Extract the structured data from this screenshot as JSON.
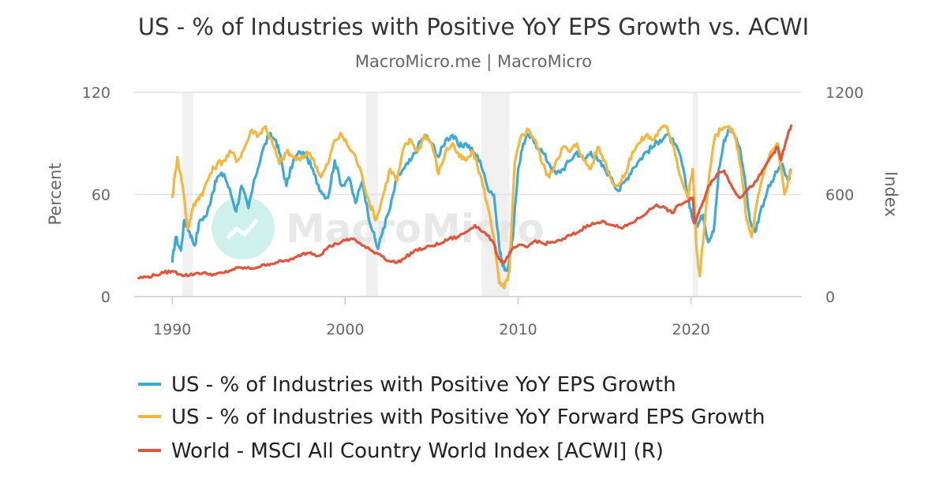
{
  "chart_data": {
    "type": "line",
    "title": "US - % of Industries with Positive YoY EPS Growth vs. ACWI",
    "subtitle": "MacroMicro.me | MacroMicro",
    "watermark": "MacroMicro",
    "xlabel": "",
    "ylabel_left": "Percent",
    "ylabel_right": "Index",
    "xlim": [
      1987.8,
      2026.4
    ],
    "ylim_left": [
      0,
      120
    ],
    "ylim_right": [
      0,
      1200
    ],
    "x_ticks": [
      1990,
      2000,
      2010,
      2020
    ],
    "y_ticks_left": [
      0,
      60,
      120
    ],
    "y_ticks_right": [
      0,
      600,
      1200
    ],
    "recessions": [
      [
        1990.6,
        1991.2
      ],
      [
        2001.2,
        2001.9
      ],
      [
        2007.9,
        2009.5
      ],
      [
        2020.1,
        2020.4
      ]
    ],
    "legend_position": "bottom",
    "series": [
      {
        "name": "US - % of Industries with Positive YoY EPS Growth",
        "axis": "left",
        "color": "#3ea8d6",
        "points": [
          [
            1990.0,
            20
          ],
          [
            1990.2,
            35
          ],
          [
            1990.5,
            27
          ],
          [
            1990.7,
            45
          ],
          [
            1991.0,
            38
          ],
          [
            1991.3,
            30
          ],
          [
            1991.6,
            45
          ],
          [
            1992.0,
            48
          ],
          [
            1992.3,
            60
          ],
          [
            1992.6,
            70
          ],
          [
            1993.0,
            72
          ],
          [
            1993.4,
            60
          ],
          [
            1993.7,
            50
          ],
          [
            1994.0,
            65
          ],
          [
            1994.4,
            52
          ],
          [
            1994.8,
            70
          ],
          [
            1995.2,
            85
          ],
          [
            1995.6,
            95
          ],
          [
            1996.0,
            92
          ],
          [
            1996.3,
            80
          ],
          [
            1996.6,
            65
          ],
          [
            1997.0,
            80
          ],
          [
            1997.4,
            85
          ],
          [
            1997.8,
            82
          ],
          [
            1998.2,
            72
          ],
          [
            1998.6,
            62
          ],
          [
            1999.0,
            58
          ],
          [
            1999.4,
            80
          ],
          [
            1999.8,
            65
          ],
          [
            2000.2,
            70
          ],
          [
            2000.6,
            55
          ],
          [
            2001.0,
            68
          ],
          [
            2001.3,
            50
          ],
          [
            2001.6,
            38
          ],
          [
            2001.9,
            28
          ],
          [
            2002.2,
            40
          ],
          [
            2002.6,
            52
          ],
          [
            2003.0,
            70
          ],
          [
            2003.4,
            75
          ],
          [
            2003.8,
            80
          ],
          [
            2004.2,
            88
          ],
          [
            2004.6,
            95
          ],
          [
            2005.0,
            90
          ],
          [
            2005.4,
            82
          ],
          [
            2005.8,
            92
          ],
          [
            2006.2,
            95
          ],
          [
            2006.6,
            88
          ],
          [
            2007.0,
            90
          ],
          [
            2007.4,
            85
          ],
          [
            2007.8,
            80
          ],
          [
            2008.2,
            65
          ],
          [
            2008.6,
            60
          ],
          [
            2008.9,
            30
          ],
          [
            2009.1,
            18
          ],
          [
            2009.4,
            16
          ],
          [
            2009.7,
            35
          ],
          [
            2010.0,
            75
          ],
          [
            2010.3,
            90
          ],
          [
            2010.6,
            95
          ],
          [
            2011.0,
            90
          ],
          [
            2011.4,
            85
          ],
          [
            2011.8,
            78
          ],
          [
            2012.2,
            72
          ],
          [
            2012.6,
            75
          ],
          [
            2013.0,
            80
          ],
          [
            2013.4,
            85
          ],
          [
            2013.8,
            80
          ],
          [
            2014.2,
            85
          ],
          [
            2014.6,
            80
          ],
          [
            2015.0,
            75
          ],
          [
            2015.4,
            70
          ],
          [
            2015.8,
            62
          ],
          [
            2016.2,
            68
          ],
          [
            2016.6,
            75
          ],
          [
            2017.0,
            80
          ],
          [
            2017.4,
            85
          ],
          [
            2017.8,
            88
          ],
          [
            2018.2,
            92
          ],
          [
            2018.6,
            95
          ],
          [
            2019.0,
            90
          ],
          [
            2019.4,
            82
          ],
          [
            2019.8,
            60
          ],
          [
            2020.1,
            45
          ],
          [
            2020.4,
            42
          ],
          [
            2020.7,
            48
          ],
          [
            2021.0,
            32
          ],
          [
            2021.3,
            38
          ],
          [
            2021.6,
            75
          ],
          [
            2021.9,
            92
          ],
          [
            2022.2,
            98
          ],
          [
            2022.5,
            95
          ],
          [
            2022.8,
            88
          ],
          [
            2023.1,
            70
          ],
          [
            2023.4,
            45
          ],
          [
            2023.7,
            38
          ],
          [
            2024.0,
            50
          ],
          [
            2024.4,
            62
          ],
          [
            2024.8,
            70
          ],
          [
            2025.2,
            78
          ],
          [
            2025.6,
            68
          ],
          [
            2025.8,
            75
          ]
        ]
      },
      {
        "name": "US - % of Industries with Positive YoY Forward EPS Growth",
        "axis": "left",
        "color": "#f3b73f",
        "points": [
          [
            1990.0,
            58
          ],
          [
            1990.3,
            82
          ],
          [
            1990.6,
            65
          ],
          [
            1990.9,
            40
          ],
          [
            1991.2,
            52
          ],
          [
            1991.5,
            58
          ],
          [
            1991.8,
            62
          ],
          [
            1992.2,
            72
          ],
          [
            1992.6,
            78
          ],
          [
            1993.0,
            80
          ],
          [
            1993.4,
            85
          ],
          [
            1993.8,
            80
          ],
          [
            1994.2,
            88
          ],
          [
            1994.6,
            98
          ],
          [
            1995.0,
            95
          ],
          [
            1995.4,
            100
          ],
          [
            1995.8,
            90
          ],
          [
            1996.2,
            78
          ],
          [
            1996.6,
            85
          ],
          [
            1997.0,
            82
          ],
          [
            1997.4,
            80
          ],
          [
            1997.8,
            85
          ],
          [
            1998.2,
            80
          ],
          [
            1998.6,
            70
          ],
          [
            1999.0,
            78
          ],
          [
            1999.4,
            92
          ],
          [
            1999.8,
            95
          ],
          [
            2000.2,
            88
          ],
          [
            2000.6,
            82
          ],
          [
            2001.0,
            70
          ],
          [
            2001.4,
            55
          ],
          [
            2001.8,
            45
          ],
          [
            2002.2,
            60
          ],
          [
            2002.6,
            75
          ],
          [
            2003.0,
            68
          ],
          [
            2003.4,
            88
          ],
          [
            2003.8,
            92
          ],
          [
            2004.2,
            85
          ],
          [
            2004.6,
            95
          ],
          [
            2005.0,
            90
          ],
          [
            2005.4,
            72
          ],
          [
            2005.8,
            85
          ],
          [
            2006.2,
            90
          ],
          [
            2006.6,
            82
          ],
          [
            2007.0,
            80
          ],
          [
            2007.4,
            85
          ],
          [
            2007.8,
            72
          ],
          [
            2008.2,
            55
          ],
          [
            2008.6,
            35
          ],
          [
            2008.9,
            8
          ],
          [
            2009.2,
            5
          ],
          [
            2009.5,
            15
          ],
          [
            2009.8,
            78
          ],
          [
            2010.2,
            95
          ],
          [
            2010.6,
            98
          ],
          [
            2011.0,
            92
          ],
          [
            2011.4,
            78
          ],
          [
            2011.8,
            70
          ],
          [
            2012.2,
            80
          ],
          [
            2012.6,
            88
          ],
          [
            2013.0,
            85
          ],
          [
            2013.4,
            90
          ],
          [
            2013.8,
            80
          ],
          [
            2014.2,
            75
          ],
          [
            2014.6,
            88
          ],
          [
            2015.0,
            80
          ],
          [
            2015.4,
            68
          ],
          [
            2015.8,
            65
          ],
          [
            2016.2,
            72
          ],
          [
            2016.6,
            85
          ],
          [
            2017.0,
            90
          ],
          [
            2017.4,
            95
          ],
          [
            2017.8,
            92
          ],
          [
            2018.2,
            98
          ],
          [
            2018.6,
            100
          ],
          [
            2019.0,
            88
          ],
          [
            2019.4,
            70
          ],
          [
            2019.8,
            58
          ],
          [
            2020.1,
            75
          ],
          [
            2020.3,
            30
          ],
          [
            2020.5,
            12
          ],
          [
            2020.8,
            45
          ],
          [
            2021.1,
            75
          ],
          [
            2021.4,
            95
          ],
          [
            2021.8,
            98
          ],
          [
            2022.2,
            100
          ],
          [
            2022.6,
            92
          ],
          [
            2022.9,
            75
          ],
          [
            2023.2,
            45
          ],
          [
            2023.5,
            35
          ],
          [
            2023.8,
            55
          ],
          [
            2024.2,
            72
          ],
          [
            2024.6,
            85
          ],
          [
            2025.0,
            90
          ],
          [
            2025.4,
            60
          ],
          [
            2025.8,
            75
          ]
        ]
      },
      {
        "name": "World - MSCI All Country World Index [ACWI] (R)",
        "axis": "right",
        "color": "#e0563b",
        "points": [
          [
            1988.0,
            110
          ],
          [
            1988.5,
            115
          ],
          [
            1989.0,
            125
          ],
          [
            1989.5,
            140
          ],
          [
            1990.0,
            150
          ],
          [
            1990.5,
            130
          ],
          [
            1991.0,
            125
          ],
          [
            1991.5,
            140
          ],
          [
            1992.0,
            135
          ],
          [
            1992.5,
            130
          ],
          [
            1993.0,
            140
          ],
          [
            1993.5,
            160
          ],
          [
            1994.0,
            170
          ],
          [
            1994.5,
            165
          ],
          [
            1995.0,
            175
          ],
          [
            1995.5,
            190
          ],
          [
            1996.0,
            200
          ],
          [
            1996.5,
            210
          ],
          [
            1997.0,
            220
          ],
          [
            1997.5,
            250
          ],
          [
            1998.0,
            260
          ],
          [
            1998.5,
            240
          ],
          [
            1999.0,
            290
          ],
          [
            1999.5,
            310
          ],
          [
            2000.0,
            330
          ],
          [
            2000.5,
            340
          ],
          [
            2001.0,
            300
          ],
          [
            2001.5,
            270
          ],
          [
            2002.0,
            250
          ],
          [
            2002.5,
            210
          ],
          [
            2003.0,
            200
          ],
          [
            2003.5,
            230
          ],
          [
            2004.0,
            270
          ],
          [
            2004.5,
            280
          ],
          [
            2005.0,
            300
          ],
          [
            2005.5,
            310
          ],
          [
            2006.0,
            340
          ],
          [
            2006.5,
            350
          ],
          [
            2007.0,
            380
          ],
          [
            2007.5,
            420
          ],
          [
            2008.0,
            380
          ],
          [
            2008.5,
            330
          ],
          [
            2008.9,
            220
          ],
          [
            2009.2,
            200
          ],
          [
            2009.6,
            270
          ],
          [
            2010.0,
            300
          ],
          [
            2010.5,
            290
          ],
          [
            2011.0,
            330
          ],
          [
            2011.5,
            310
          ],
          [
            2012.0,
            320
          ],
          [
            2012.5,
            330
          ],
          [
            2013.0,
            360
          ],
          [
            2013.5,
            380
          ],
          [
            2014.0,
            420
          ],
          [
            2014.5,
            430
          ],
          [
            2015.0,
            440
          ],
          [
            2015.5,
            420
          ],
          [
            2016.0,
            400
          ],
          [
            2016.5,
            430
          ],
          [
            2017.0,
            460
          ],
          [
            2017.5,
            500
          ],
          [
            2018.0,
            540
          ],
          [
            2018.5,
            520
          ],
          [
            2018.9,
            490
          ],
          [
            2019.3,
            540
          ],
          [
            2019.8,
            560
          ],
          [
            2020.1,
            580
          ],
          [
            2020.2,
            430
          ],
          [
            2020.6,
            530
          ],
          [
            2021.0,
            650
          ],
          [
            2021.5,
            720
          ],
          [
            2021.9,
            740
          ],
          [
            2022.3,
            660
          ],
          [
            2022.8,
            580
          ],
          [
            2023.3,
            630
          ],
          [
            2023.8,
            680
          ],
          [
            2024.2,
            750
          ],
          [
            2024.6,
            820
          ],
          [
            2025.0,
            880
          ],
          [
            2025.2,
            800
          ],
          [
            2025.5,
            920
          ],
          [
            2025.8,
            1010
          ]
        ]
      }
    ]
  }
}
